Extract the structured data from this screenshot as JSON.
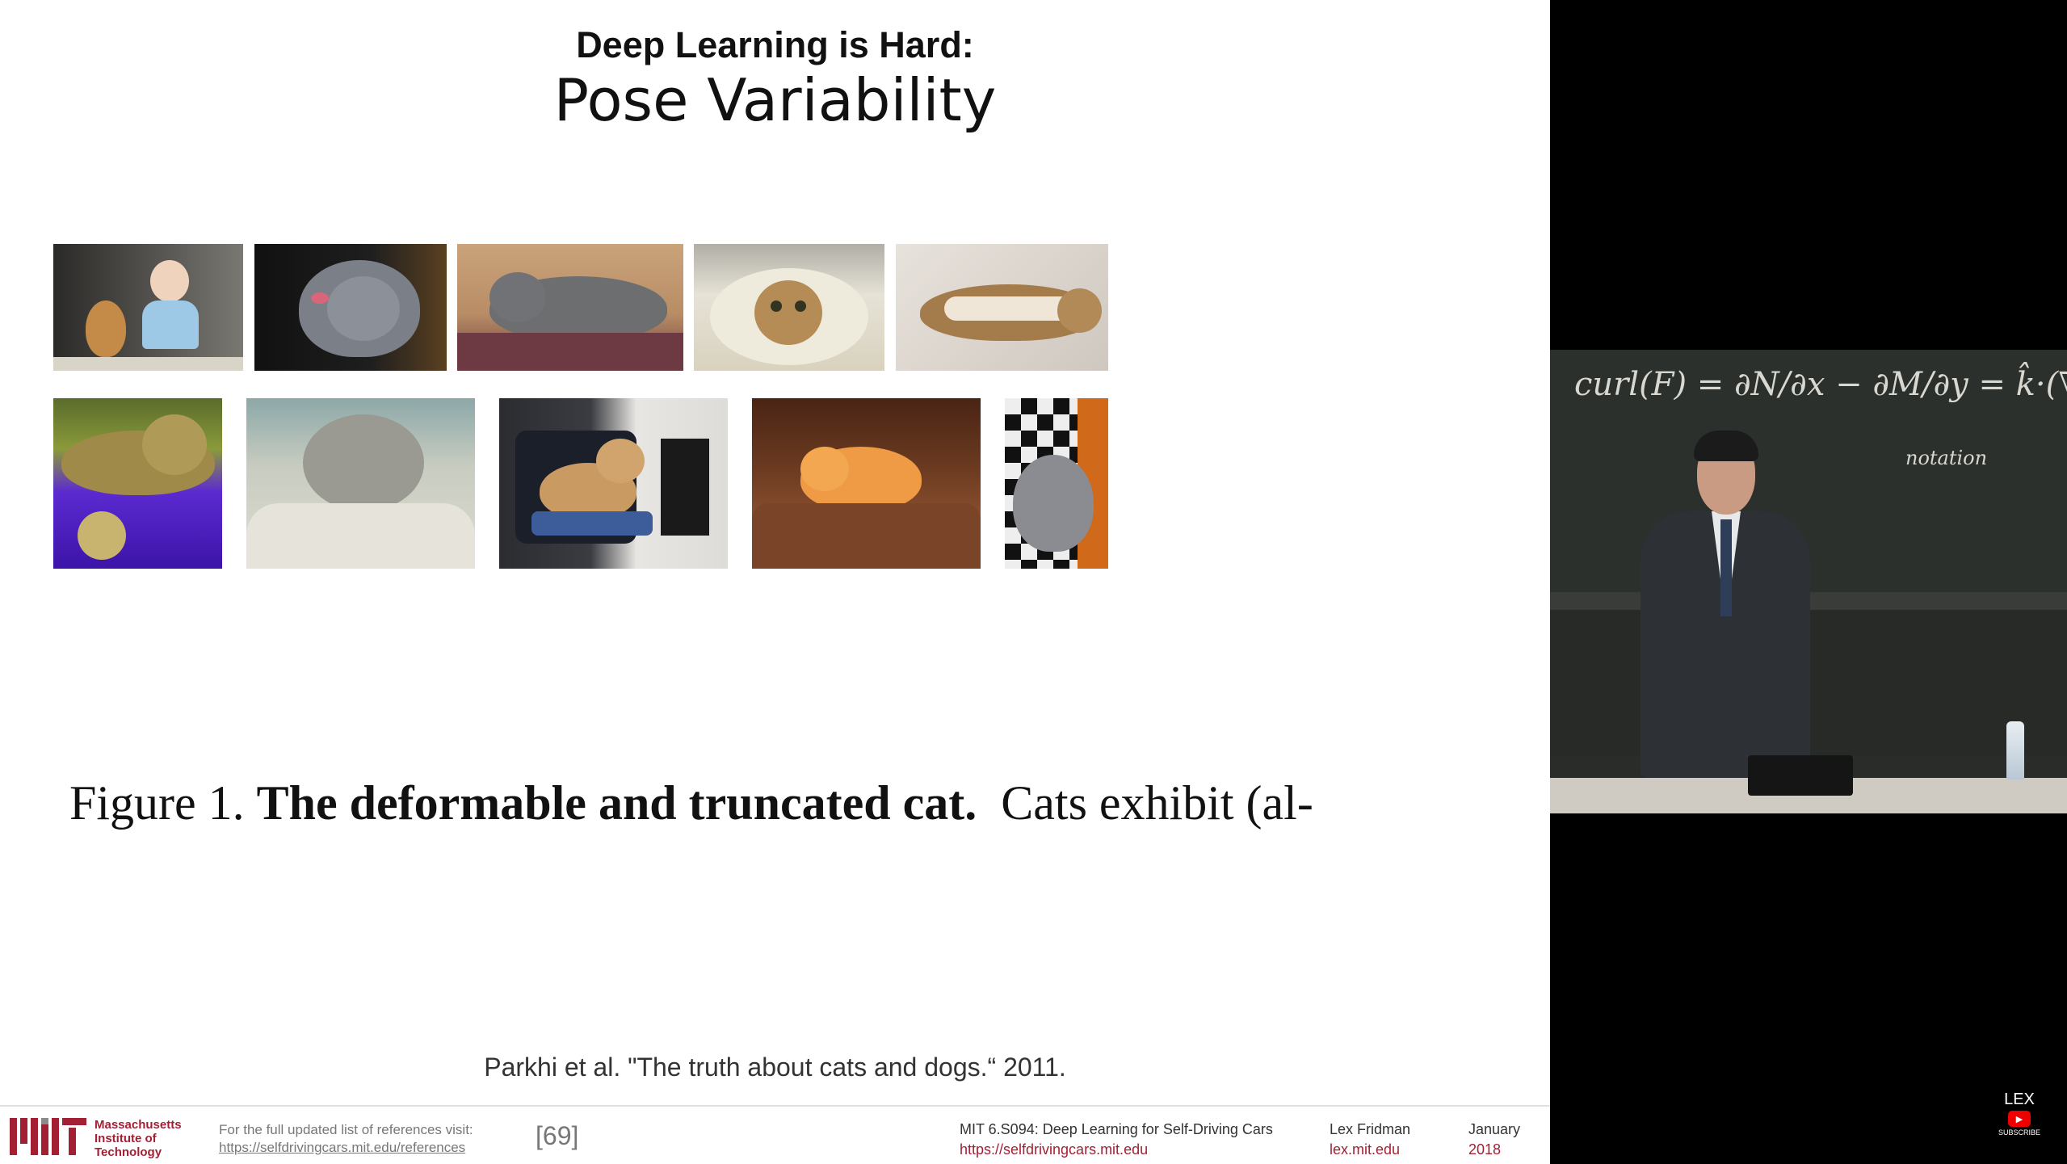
{
  "slide": {
    "title_small": "Deep Learning is Hard:",
    "title_large": "Pose Variability",
    "figure_caption": {
      "prefix": "Figure 1. ",
      "bold": "The deformable and truncated cat.",
      "rest": "  Cats exhibit (al-"
    },
    "citation": "Parkhi et al. \"The truth about cats and dogs.“ 2011.",
    "photos": [
      "cat-with-baby-photo",
      "grey-cat-licking-paw-photo",
      "grey-cat-lying-on-bed-photo",
      "cat-in-sink-photo",
      "tabby-cat-on-back-photo",
      "tabby-cat-on-purple-blanket-photo",
      "grey-cat-on-white-blanket-photo",
      "cat-on-office-chair-photo",
      "orange-kitten-sleeping-photo",
      "grey-cat-on-checkered-floor-photo"
    ]
  },
  "footer": {
    "mit_logo_text": "MIT",
    "institution": [
      "Massachusetts",
      "Institute of",
      "Technology"
    ],
    "ref_line1": "For the full updated list of references visit:",
    "ref_link": "https://selfdrivingcars.mit.edu/references",
    "slide_number": "[69]",
    "course_title": "MIT 6.S094: Deep Learning for Self-Driving Cars",
    "course_url": "https://selfdrivingcars.mit.edu",
    "author": "Lex Fridman",
    "author_url": "lex.mit.edu",
    "month": "January",
    "year": "2018"
  },
  "video": {
    "chalk_main": "curl(F) = ∂N/∂x − ∂M/∂y = k̂·(∇×F)",
    "chalk_note": "notation"
  },
  "watermark": {
    "label": "LEX",
    "subscribe": "SUBSCRIBE"
  },
  "colors": {
    "mit_red": "#a31f34",
    "footer_gray": "#777777"
  }
}
